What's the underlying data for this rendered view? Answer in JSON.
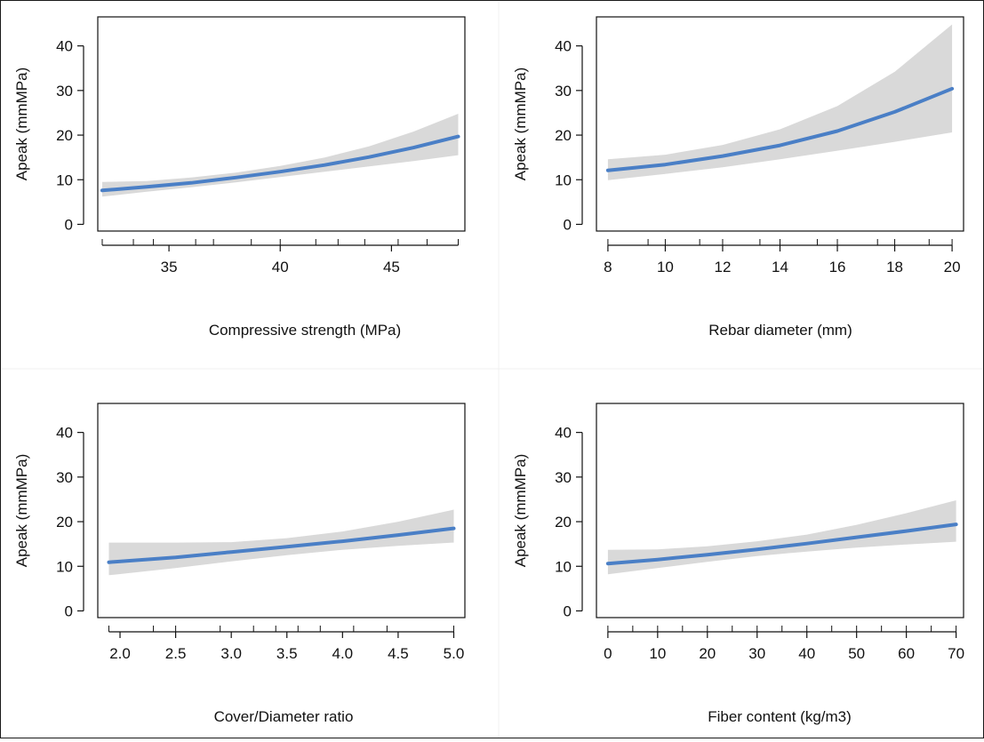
{
  "figure": {
    "name": "partial-dependence-grid"
  },
  "chart_data": [
    {
      "type": "line",
      "xlabel": "Compressive strength (MPa)",
      "ylabel": "Apeak (mmMPa)",
      "xlim": [
        31.8,
        48.3
      ],
      "ylim": [
        -1.5,
        46.5
      ],
      "xticks": [
        35,
        40,
        45
      ],
      "xtick_labels": [
        "35",
        "40",
        "45"
      ],
      "xrug": [
        32,
        33.4,
        34.3,
        36.2,
        37,
        38.7,
        40,
        41.6,
        42.6,
        43.8,
        45.3,
        46.6,
        48
      ],
      "yticks": [
        0,
        10,
        20,
        30,
        40
      ],
      "ytick_labels": [
        "0",
        "10",
        "20",
        "30",
        "40"
      ],
      "series": [
        {
          "x": [
            32,
            34,
            36,
            38,
            40,
            42,
            44,
            46,
            48
          ],
          "y": [
            7.6,
            8.4,
            9.3,
            10.5,
            11.8,
            13.3,
            15.1,
            17.2,
            19.7
          ],
          "lower": [
            6.2,
            7.3,
            8.3,
            9.4,
            10.6,
            11.8,
            13.0,
            14.2,
            15.5
          ],
          "upper": [
            9.5,
            9.7,
            10.5,
            11.6,
            13.1,
            15.0,
            17.5,
            20.8,
            24.8
          ],
          "color": "#4a7fc6",
          "band_color": "#d9d9d9"
        }
      ]
    },
    {
      "type": "line",
      "xlabel": "Rebar diameter (mm)",
      "ylabel": "Apeak (mmMPa)",
      "xlim": [
        7.6,
        20.4
      ],
      "ylim": [
        -1.5,
        46.5
      ],
      "xticks": [
        8,
        10,
        12,
        14,
        16,
        18,
        20
      ],
      "xtick_labels": [
        "8",
        "10",
        "12",
        "14",
        "16",
        "18",
        "20"
      ],
      "xrug": [
        8,
        9.4,
        10,
        11.2,
        12,
        13.3,
        14,
        15.3,
        16,
        17.4,
        18,
        19.2,
        20
      ],
      "yticks": [
        0,
        10,
        20,
        30,
        40
      ],
      "ytick_labels": [
        "0",
        "10",
        "20",
        "30",
        "40"
      ],
      "series": [
        {
          "x": [
            8,
            10,
            12,
            14,
            16,
            18,
            20
          ],
          "y": [
            12.1,
            13.4,
            15.3,
            17.7,
            20.9,
            25.2,
            30.4
          ],
          "lower": [
            9.9,
            11.3,
            12.8,
            14.6,
            16.5,
            18.5,
            20.6
          ],
          "upper": [
            14.6,
            15.6,
            17.8,
            21.3,
            26.5,
            34.2,
            44.8
          ],
          "color": "#4a7fc6",
          "band_color": "#d9d9d9"
        }
      ]
    },
    {
      "type": "line",
      "xlabel": "Cover/Diameter ratio",
      "ylabel": "Apeak (mmMPa)",
      "xlim": [
        1.8,
        5.1
      ],
      "ylim": [
        -1.5,
        46.5
      ],
      "xticks": [
        2.0,
        2.5,
        3.0,
        3.5,
        4.0,
        4.5,
        5.0
      ],
      "xtick_labels": [
        "2.0",
        "2.5",
        "3.0",
        "3.5",
        "4.0",
        "4.5",
        "5.0"
      ],
      "xrug": [
        1.9,
        2.3,
        2.5,
        2.9,
        3.2,
        3.4,
        3.6,
        3.8,
        4.1,
        4.4,
        5.0
      ],
      "yticks": [
        0,
        10,
        20,
        30,
        40
      ],
      "ytick_labels": [
        "0",
        "10",
        "20",
        "30",
        "40"
      ],
      "series": [
        {
          "x": [
            1.9,
            2.5,
            3.0,
            3.5,
            4.0,
            4.5,
            5.0
          ],
          "y": [
            10.9,
            12.0,
            13.2,
            14.4,
            15.6,
            17.0,
            18.5
          ],
          "lower": [
            8.0,
            9.6,
            11.1,
            12.5,
            13.7,
            14.6,
            15.3
          ],
          "upper": [
            15.3,
            15.3,
            15.4,
            16.3,
            17.8,
            20.0,
            22.7
          ],
          "color": "#4a7fc6",
          "band_color": "#d9d9d9"
        }
      ]
    },
    {
      "type": "line",
      "xlabel": "Fiber content (kg/m3)",
      "ylabel": "Apeak (mmMPa)",
      "xlim": [
        -2.3,
        71.5
      ],
      "ylim": [
        -1.5,
        46.5
      ],
      "xticks": [
        0,
        10,
        20,
        30,
        40,
        50,
        60,
        70
      ],
      "xtick_labels": [
        "0",
        "10",
        "20",
        "30",
        "40",
        "50",
        "60",
        "70"
      ],
      "xrug": [
        0,
        5,
        10,
        15,
        20,
        25,
        30,
        35,
        40,
        45,
        50,
        55,
        60,
        65,
        70
      ],
      "yticks": [
        0,
        10,
        20,
        30,
        40
      ],
      "ytick_labels": [
        "0",
        "10",
        "20",
        "30",
        "40"
      ],
      "series": [
        {
          "x": [
            0,
            10,
            20,
            30,
            40,
            50,
            60,
            70
          ],
          "y": [
            10.6,
            11.5,
            12.6,
            13.8,
            15.1,
            16.5,
            17.9,
            19.4
          ],
          "lower": [
            8.2,
            9.6,
            11.0,
            12.3,
            13.3,
            14.2,
            14.9,
            15.5
          ],
          "upper": [
            13.7,
            13.8,
            14.5,
            15.6,
            17.1,
            19.3,
            21.9,
            24.8
          ],
          "color": "#4a7fc6",
          "band_color": "#d9d9d9"
        }
      ]
    }
  ]
}
